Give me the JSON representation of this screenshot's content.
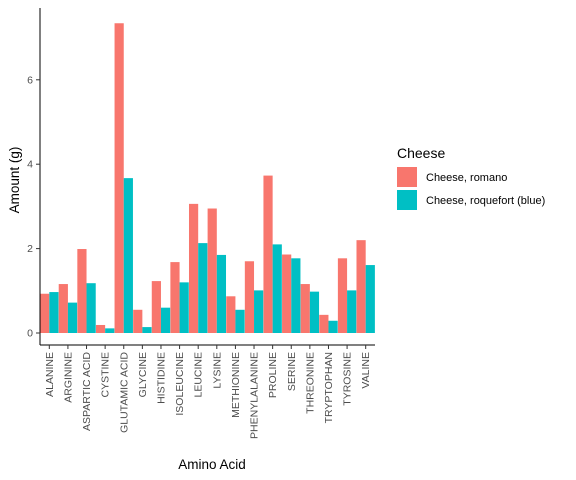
{
  "chart_data": {
    "type": "bar",
    "xlabel": "Amino Acid",
    "ylabel": "Amount (g)",
    "ylim": [
      0,
      7.6
    ],
    "yticks": [
      "0",
      "2",
      "4",
      "6"
    ],
    "grid": false,
    "legend_position": "right",
    "legend_title": "Cheese",
    "categories": [
      "ALANINE",
      "ARGININE",
      "ASPARTIC ACID",
      "CYSTINE",
      "GLUTAMIC ACID",
      "GLYCINE",
      "HISTIDINE",
      "ISOLEUCINE",
      "LEUCINE",
      "LYSINE",
      "METHIONINE",
      "PHENYLALANINE",
      "PROLINE",
      "SERINE",
      "THREONINE",
      "TRYPTOPHAN",
      "TYROSINE",
      "VALINE"
    ],
    "series": [
      {
        "name": "Cheese, romano",
        "color": "#F8766D",
        "values": [
          0.93,
          1.16,
          1.99,
          0.19,
          7.34,
          0.55,
          1.23,
          1.68,
          3.06,
          2.95,
          0.87,
          1.7,
          3.73,
          1.86,
          1.16,
          0.43,
          1.77,
          2.2
        ]
      },
      {
        "name": "Cheese, roquefort (blue)",
        "color": "#00BFC4",
        "values": [
          0.97,
          0.72,
          1.18,
          0.11,
          3.67,
          0.14,
          0.6,
          1.2,
          2.13,
          1.85,
          0.55,
          1.01,
          2.1,
          1.77,
          0.98,
          0.29,
          1.01,
          1.61
        ]
      }
    ]
  }
}
